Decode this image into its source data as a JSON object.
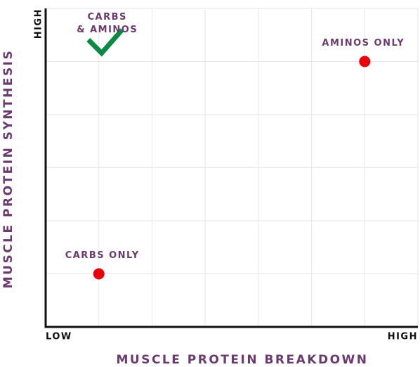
{
  "chart_data": {
    "type": "scatter",
    "x_label": "MUSCLE PROTEIN BREAKDOWN",
    "y_label": "MUSCLE PROTEIN SYNTHESIS",
    "xlim": [
      0,
      7
    ],
    "ylim": [
      0,
      6
    ],
    "xticks": [
      {
        "value": 0,
        "label": "LOW"
      },
      {
        "value": 7,
        "label": "HIGH"
      }
    ],
    "yticks": [
      {
        "value": 6,
        "label": "HIGH"
      }
    ],
    "xgrid": [
      1,
      2,
      3,
      4,
      5,
      6,
      7
    ],
    "ygrid": [
      1,
      2,
      3,
      4,
      5,
      6
    ],
    "grid_color": "#e6e6e6",
    "series": [
      {
        "name": [
          "CARBS ONLY"
        ],
        "marker": "dot",
        "color": "#e8000b",
        "x": [
          1
        ],
        "values": [
          1
        ]
      },
      {
        "name": [
          "AMINOS ONLY"
        ],
        "marker": "dot",
        "color": "#e8000b",
        "x": [
          6
        ],
        "values": [
          5
        ]
      },
      {
        "name": [
          "CARBS",
          "& AMINOS"
        ],
        "marker": "check",
        "color": "#0b8a43",
        "x": [
          1
        ],
        "values": [
          5
        ]
      }
    ]
  }
}
